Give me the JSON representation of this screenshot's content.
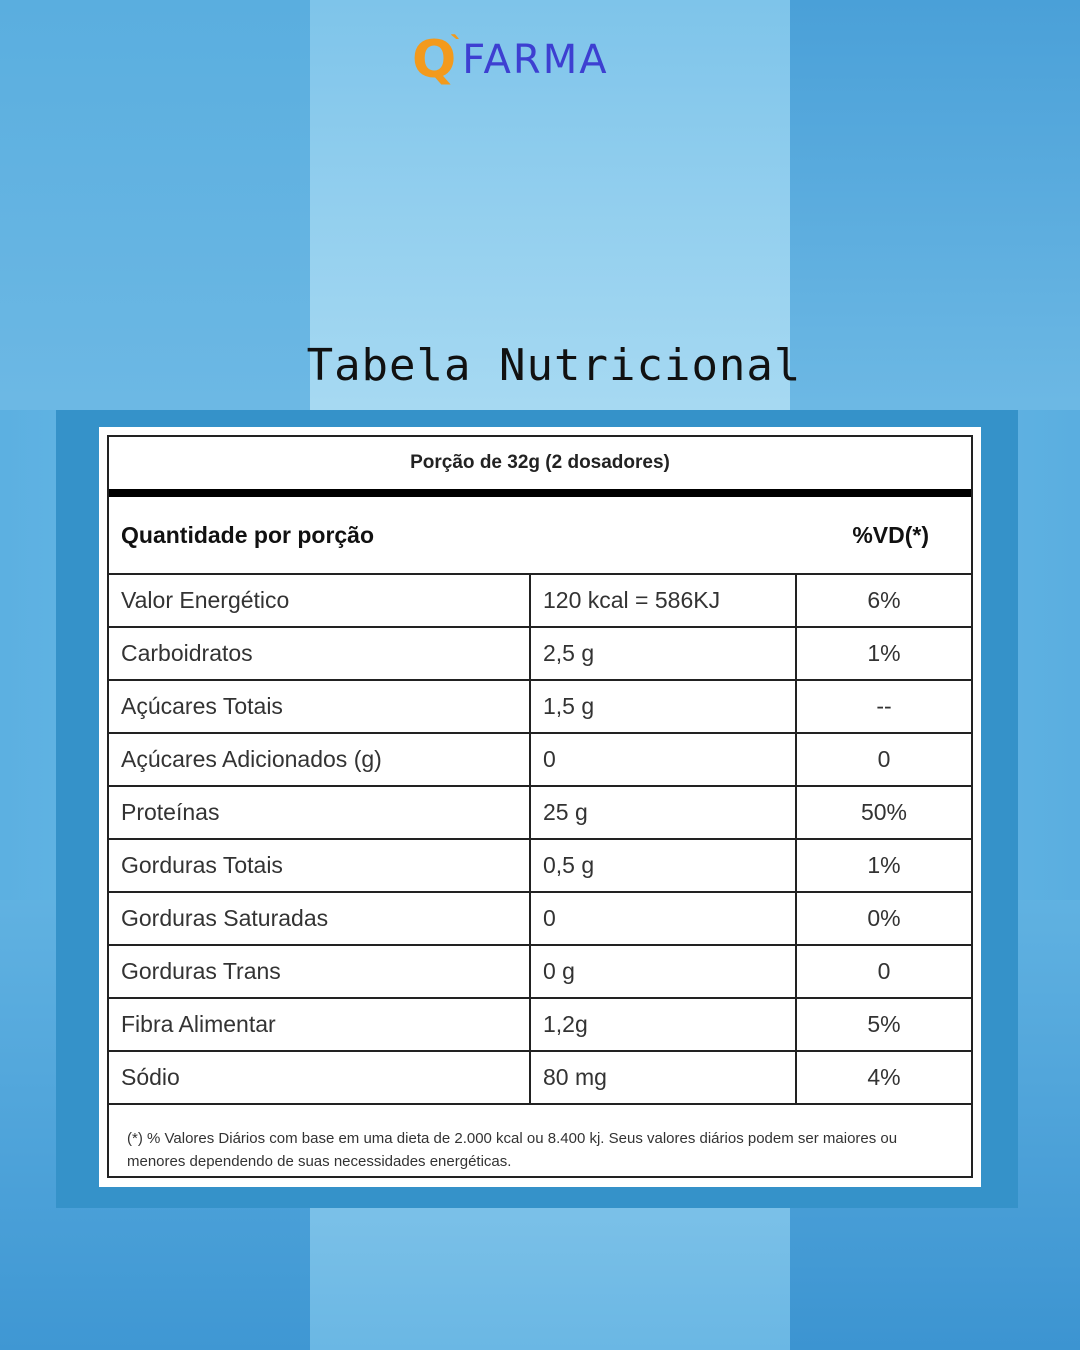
{
  "brand": {
    "logo_q": "Q",
    "logo_tick": "`",
    "logo_word": "FARMA",
    "colors": {
      "q": "#f39a1c",
      "word": "#3d3fd1"
    }
  },
  "title": "Tabela Nutricional",
  "table": {
    "portion": "Porção de 32g (2 dosadores)",
    "header_left": "Quantidade por porção",
    "header_right": "%VD(*)",
    "rows": [
      {
        "name": "Valor Energético",
        "amount": "120 kcal = 586KJ",
        "vd": "6%"
      },
      {
        "name": "Carboidratos",
        "amount": "2,5 g",
        "vd": "1%"
      },
      {
        "name": "Açúcares Totais",
        "amount": "1,5 g",
        "vd": "--"
      },
      {
        "name": "Açúcares Adicionados (g)",
        "amount": "0",
        "vd": "0"
      },
      {
        "name": "Proteínas",
        "amount": "25 g",
        "vd": "50%"
      },
      {
        "name": "Gorduras Totais",
        "amount": "0,5 g",
        "vd": "1%"
      },
      {
        "name": "Gorduras Saturadas",
        "amount": "0",
        "vd": "0%"
      },
      {
        "name": "Gorduras Trans",
        "amount": "0 g",
        "vd": "0"
      },
      {
        "name": "Fibra Alimentar",
        "amount": "1,2g",
        "vd": "5%"
      },
      {
        "name": "Sódio",
        "amount": "80 mg",
        "vd": "4%"
      }
    ],
    "footnote": "(*) % Valores Diários com base em uma dieta de 2.000 kcal ou 8.400 kj. Seus valores diários podem ser maiores ou menores dependendo de suas necessidades energéticas."
  }
}
